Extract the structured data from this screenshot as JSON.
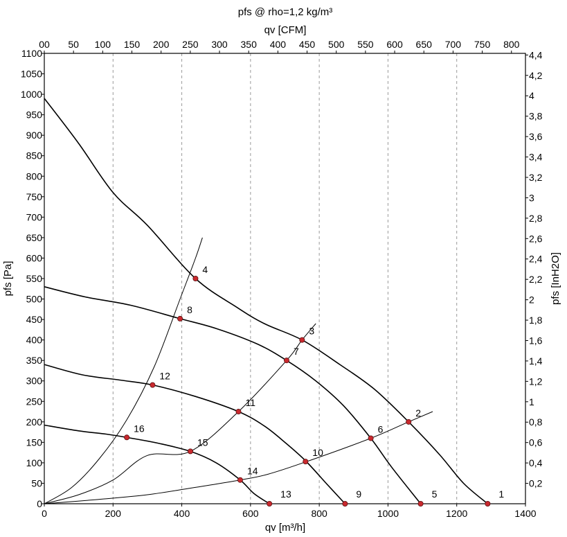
{
  "chart_data": {
    "type": "line",
    "title": "pfs @ rho=1,2 kg/m³",
    "xlabel": "qv [m³/h]",
    "x2label": "qv [CFM]",
    "ylabel": "pfs [Pa]",
    "y2label": "pfs [InH2O]",
    "xlim": [
      0,
      1400
    ],
    "ylim": [
      0,
      1100
    ],
    "x2lim": [
      0,
      824
    ],
    "y2lim": [
      0,
      4.416
    ],
    "x_ticks": [
      "0",
      "200",
      "400",
      "600",
      "800",
      "1000",
      "1200",
      "1400"
    ],
    "y_ticks": [
      "0",
      "50",
      "100",
      "150",
      "200",
      "250",
      "300",
      "350",
      "400",
      "450",
      "500",
      "550",
      "600",
      "650",
      "700",
      "750",
      "800",
      "850",
      "900",
      "950",
      "1000",
      "1050",
      "1100"
    ],
    "x2_ticks": [
      "00",
      "50",
      "100",
      "150",
      "200",
      "250",
      "300",
      "350",
      "400",
      "450",
      "500",
      "550",
      "600",
      "650",
      "700",
      "750",
      "800"
    ],
    "y2_ticks": [
      "0,2",
      "0,4",
      "0,6",
      "0,8",
      "1",
      "1,2",
      "1,4",
      "1,6",
      "1,8",
      "2",
      "2,2",
      "2,4",
      "2,6",
      "2,8",
      "3",
      "3,2",
      "3,4",
      "3,6",
      "3,8",
      "4",
      "4,2",
      "4,4"
    ],
    "grid": "vertical dashed",
    "series": [
      {
        "kind": "fan",
        "x": [
          0,
          100,
          200,
          300,
          440,
          560,
          640,
          750,
          860,
          960,
          1060,
          1150,
          1220,
          1290
        ],
        "y": [
          990,
          880,
          760,
          680,
          550,
          480,
          440,
          400,
          340,
          280,
          200,
          120,
          50,
          0
        ]
      },
      {
        "kind": "fan",
        "x": [
          0,
          120,
          250,
          395,
          500,
          620,
          705,
          790,
          870,
          950,
          1010,
          1095
        ],
        "y": [
          530,
          505,
          485,
          452,
          428,
          390,
          350,
          300,
          240,
          160,
          90,
          0
        ]
      },
      {
        "kind": "fan",
        "x": [
          0,
          110,
          220,
          315,
          440,
          565,
          640,
          700,
          760,
          820,
          875
        ],
        "y": [
          340,
          315,
          302,
          290,
          262,
          225,
          190,
          150,
          105,
          50,
          0
        ]
      },
      {
        "kind": "fan",
        "x": [
          0,
          100,
          180,
          240,
          330,
          425,
          500,
          570,
          610,
          655
        ],
        "y": [
          192,
          178,
          170,
          162,
          148,
          128,
          100,
          58,
          25,
          0
        ]
      },
      {
        "kind": "system",
        "x": [
          0,
          80,
          160,
          240,
          320,
          395,
          440,
          460
        ],
        "y": [
          0,
          40,
          110,
          205,
          335,
          500,
          600,
          650
        ]
      },
      {
        "kind": "system",
        "x": [
          0,
          100,
          200,
          300,
          425,
          565,
          705,
          750,
          790
        ],
        "y": [
          0,
          22,
          58,
          118,
          128,
          225,
          350,
          400,
          440
        ]
      },
      {
        "kind": "system",
        "x": [
          0,
          150,
          300,
          425,
          570,
          650,
          760,
          950,
          1060,
          1130
        ],
        "y": [
          0,
          10,
          22,
          38,
          58,
          72,
          102,
          160,
          200,
          225
        ]
      }
    ],
    "points": [
      {
        "label": "1",
        "x": 1290,
        "y": 0
      },
      {
        "label": "2",
        "x": 1060,
        "y": 200
      },
      {
        "label": "3",
        "x": 750,
        "y": 400
      },
      {
        "label": "4",
        "x": 440,
        "y": 550
      },
      {
        "label": "5",
        "x": 1095,
        "y": 0
      },
      {
        "label": "6",
        "x": 950,
        "y": 160
      },
      {
        "label": "7",
        "x": 705,
        "y": 350
      },
      {
        "label": "8",
        "x": 395,
        "y": 452
      },
      {
        "label": "9",
        "x": 875,
        "y": 0
      },
      {
        "label": "10",
        "x": 760,
        "y": 103
      },
      {
        "label": "11",
        "x": 565,
        "y": 225
      },
      {
        "label": "12",
        "x": 315,
        "y": 290
      },
      {
        "label": "13",
        "x": 655,
        "y": 0
      },
      {
        "label": "14",
        "x": 570,
        "y": 58
      },
      {
        "label": "15",
        "x": 425,
        "y": 128
      },
      {
        "label": "16",
        "x": 240,
        "y": 162
      }
    ]
  }
}
